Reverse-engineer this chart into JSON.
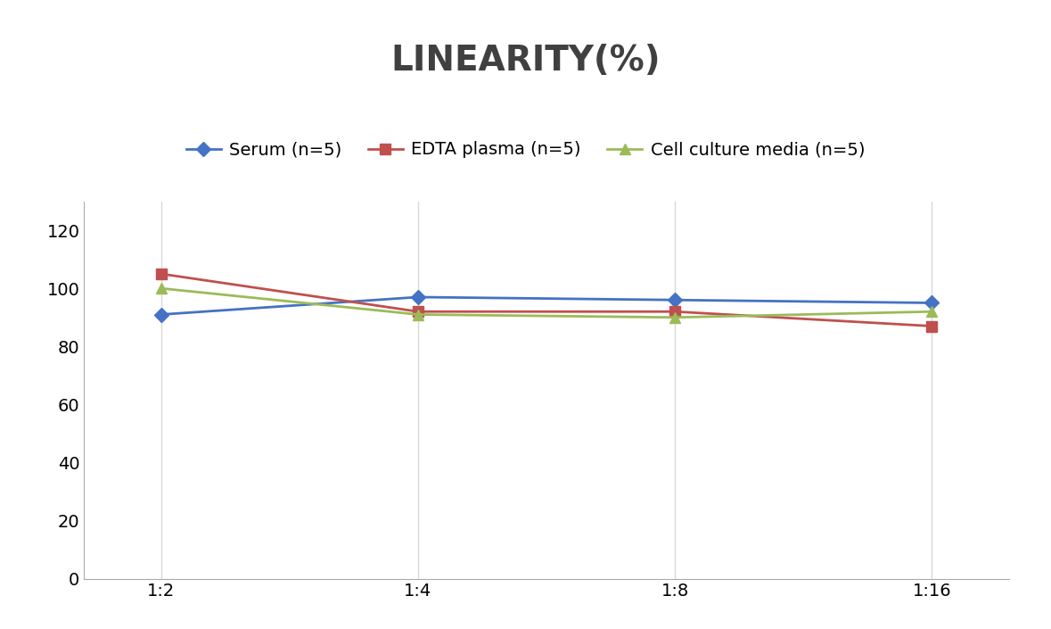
{
  "title": "LINEARITY(%)",
  "title_fontsize": 28,
  "title_fontweight": "bold",
  "title_color": "#404040",
  "x_labels": [
    "1:2",
    "1:4",
    "1:8",
    "1:16"
  ],
  "x_positions": [
    0,
    1,
    2,
    3
  ],
  "series": [
    {
      "label": "Serum (n=5)",
      "values": [
        91,
        97,
        96,
        95
      ],
      "color": "#4472C4",
      "marker": "D",
      "markersize": 8,
      "linewidth": 2
    },
    {
      "label": "EDTA plasma (n=5)",
      "values": [
        105,
        92,
        92,
        87
      ],
      "color": "#C0504D",
      "marker": "s",
      "markersize": 8,
      "linewidth": 2
    },
    {
      "label": "Cell culture media (n=5)",
      "values": [
        100,
        91,
        90,
        92
      ],
      "color": "#9BBB59",
      "marker": "^",
      "markersize": 8,
      "linewidth": 2
    }
  ],
  "ylim": [
    0,
    130
  ],
  "yticks": [
    0,
    20,
    40,
    60,
    80,
    100,
    120
  ],
  "grid_color": "#D9D9D9",
  "background_color": "#FFFFFF",
  "legend_fontsize": 14,
  "tick_fontsize": 14
}
